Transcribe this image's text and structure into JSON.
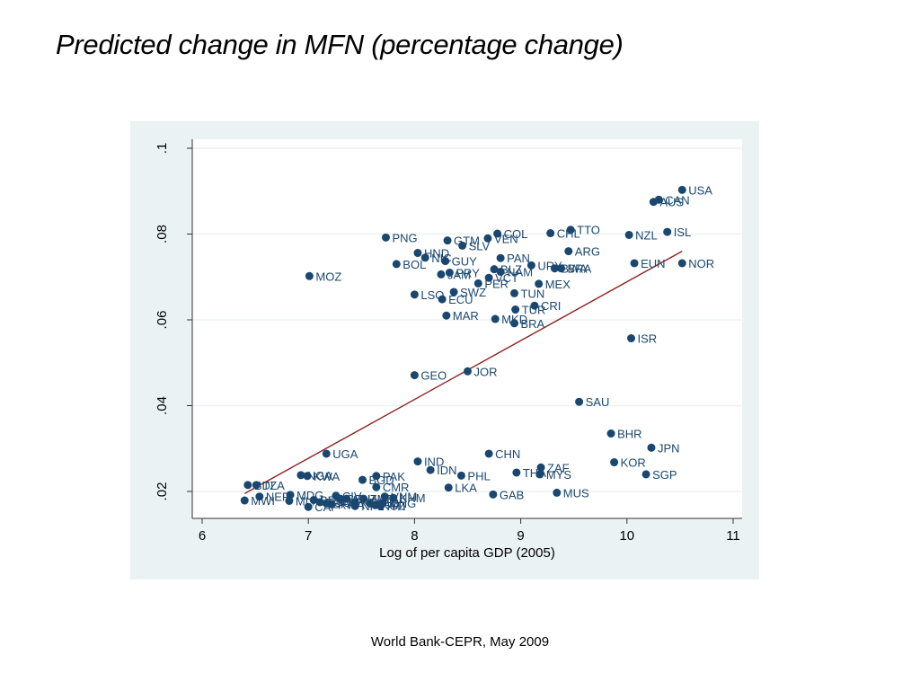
{
  "slide": {
    "title": "Predicted change in MFN (percentage change)",
    "footer": "World Bank-CEPR, May 2009"
  },
  "colors": {
    "marker": "#1a476f",
    "fit_line": "#8b2323",
    "plot_region_bg": "#eaf2f3",
    "plot_bg": "#ffffff",
    "grid": "#eaf2f3"
  },
  "chart_data": {
    "type": "scatter",
    "title": "",
    "xlabel": "Log of per capita GDP (2005)",
    "ylabel": "",
    "xlim": [
      5.95,
      11.05
    ],
    "ylim": [
      0.0165,
      0.1015
    ],
    "xticks": [
      6,
      7,
      8,
      9,
      10,
      11
    ],
    "xtick_labels": [
      "6",
      "7",
      "8",
      "9",
      "10",
      "11"
    ],
    "yticks": [
      0.02,
      0.04,
      0.06,
      0.08,
      0.1
    ],
    "ytick_labels": [
      ".02",
      ".04",
      ".06",
      ".08",
      ".1"
    ],
    "grid": true,
    "legend": "none",
    "fit_line": {
      "x": [
        6.4,
        10.52
      ],
      "y": [
        0.0195,
        0.076
      ]
    },
    "points": [
      {
        "label": "USA",
        "x": 10.52,
        "y": 0.0903
      },
      {
        "label": "CAN",
        "x": 10.3,
        "y": 0.088
      },
      {
        "label": "AUS",
        "x": 10.25,
        "y": 0.0875
      },
      {
        "label": "TTO",
        "x": 9.47,
        "y": 0.081
      },
      {
        "label": "CHL",
        "x": 9.28,
        "y": 0.0802
      },
      {
        "label": "NZL",
        "x": 10.02,
        "y": 0.0798
      },
      {
        "label": "ISL",
        "x": 10.38,
        "y": 0.0805
      },
      {
        "label": "ARG",
        "x": 9.45,
        "y": 0.076
      },
      {
        "label": "EUN",
        "x": 10.07,
        "y": 0.0732
      },
      {
        "label": "NOR",
        "x": 10.52,
        "y": 0.0732
      },
      {
        "label": "ISR",
        "x": 10.04,
        "y": 0.0557
      },
      {
        "label": "PNG",
        "x": 7.73,
        "y": 0.0792
      },
      {
        "label": "GTM",
        "x": 8.31,
        "y": 0.0785
      },
      {
        "label": "SLV",
        "x": 8.45,
        "y": 0.0773
      },
      {
        "label": "VEN",
        "x": 8.69,
        "y": 0.079
      },
      {
        "label": "COL",
        "x": 8.78,
        "y": 0.0801
      },
      {
        "label": "HND",
        "x": 8.03,
        "y": 0.0756
      },
      {
        "label": "NIC",
        "x": 8.1,
        "y": 0.0745
      },
      {
        "label": "GUY",
        "x": 8.29,
        "y": 0.0737
      },
      {
        "label": "BOL",
        "x": 7.83,
        "y": 0.073
      },
      {
        "label": "PAN",
        "x": 8.81,
        "y": 0.0744
      },
      {
        "label": "URY",
        "x": 9.1,
        "y": 0.0727
      },
      {
        "label": "BWA",
        "x": 9.32,
        "y": 0.072
      },
      {
        "label": "BRA2",
        "x": 9.38,
        "y": 0.072
      },
      {
        "label": "JAM",
        "x": 8.25,
        "y": 0.0706
      },
      {
        "label": "PRY",
        "x": 8.33,
        "y": 0.071
      },
      {
        "label": "BLZ",
        "x": 8.75,
        "y": 0.0718
      },
      {
        "label": "NAM",
        "x": 8.81,
        "y": 0.0712
      },
      {
        "label": "VCT",
        "x": 8.7,
        "y": 0.0698
      },
      {
        "label": "PER",
        "x": 8.6,
        "y": 0.0685
      },
      {
        "label": "MEX",
        "x": 9.17,
        "y": 0.0684
      },
      {
        "label": "MOZ",
        "x": 7.01,
        "y": 0.0702
      },
      {
        "label": "LSO",
        "x": 8.0,
        "y": 0.0659
      },
      {
        "label": "SWZ",
        "x": 8.37,
        "y": 0.0665
      },
      {
        "label": "ECU",
        "x": 8.26,
        "y": 0.0648
      },
      {
        "label": "TUN",
        "x": 8.94,
        "y": 0.0662
      },
      {
        "label": "CRI",
        "x": 9.13,
        "y": 0.0633
      },
      {
        "label": "TUR",
        "x": 8.95,
        "y": 0.0624
      },
      {
        "label": "MAR",
        "x": 8.3,
        "y": 0.061
      },
      {
        "label": "MKD",
        "x": 8.76,
        "y": 0.0602
      },
      {
        "label": "BRA",
        "x": 8.94,
        "y": 0.0592
      },
      {
        "label": "GEO",
        "x": 8.0,
        "y": 0.0471
      },
      {
        "label": "JOR",
        "x": 8.5,
        "y": 0.048
      },
      {
        "label": "SAU",
        "x": 9.55,
        "y": 0.0409
      },
      {
        "label": "BHR",
        "x": 9.85,
        "y": 0.0335
      },
      {
        "label": "JPN",
        "x": 10.23,
        "y": 0.0302
      },
      {
        "label": "KOR",
        "x": 9.88,
        "y": 0.0268
      },
      {
        "label": "SGP",
        "x": 10.18,
        "y": 0.024
      },
      {
        "label": "CHN",
        "x": 8.7,
        "y": 0.0288
      },
      {
        "label": "IND",
        "x": 8.03,
        "y": 0.027
      },
      {
        "label": "IDN",
        "x": 8.15,
        "y": 0.025
      },
      {
        "label": "PHL",
        "x": 8.44,
        "y": 0.0237
      },
      {
        "label": "LKA",
        "x": 8.32,
        "y": 0.0209
      },
      {
        "label": "GAB",
        "x": 8.74,
        "y": 0.0193
      },
      {
        "label": "THA",
        "x": 8.96,
        "y": 0.0244
      },
      {
        "label": "ZAF",
        "x": 9.19,
        "y": 0.0256
      },
      {
        "label": "MYS",
        "x": 9.18,
        "y": 0.024
      },
      {
        "label": "MUS",
        "x": 9.34,
        "y": 0.0197
      },
      {
        "label": "UGA",
        "x": 7.17,
        "y": 0.0288
      },
      {
        "label": "NGA",
        "x": 6.93,
        "y": 0.0238
      },
      {
        "label": "KWA",
        "x": 6.99,
        "y": 0.0236
      },
      {
        "label": "PAK",
        "x": 7.64,
        "y": 0.0236
      },
      {
        "label": "BGD",
        "x": 7.51,
        "y": 0.0227
      },
      {
        "label": "CMR",
        "x": 7.64,
        "y": 0.021
      },
      {
        "label": "BDI",
        "x": 6.43,
        "y": 0.0215
      },
      {
        "label": "TZA",
        "x": 6.51,
        "y": 0.0215
      },
      {
        "label": "NER",
        "x": 6.54,
        "y": 0.0188
      },
      {
        "label": "MDG",
        "x": 6.83,
        "y": 0.0192
      },
      {
        "label": "MWI",
        "x": 6.4,
        "y": 0.0179
      },
      {
        "label": "MLI",
        "x": 6.82,
        "y": 0.0178
      },
      {
        "label": "BEN",
        "x": 7.05,
        "y": 0.018
      },
      {
        "label": "CAF",
        "x": 7.0,
        "y": 0.0164
      },
      {
        "label": "CIV",
        "x": 7.26,
        "y": 0.019
      },
      {
        "label": "SEN",
        "x": 7.3,
        "y": 0.0183
      },
      {
        "label": "TGO",
        "x": 7.11,
        "y": 0.0175
      },
      {
        "label": "BFA",
        "x": 7.17,
        "y": 0.0172
      },
      {
        "label": "GHA",
        "x": 7.36,
        "y": 0.0183
      },
      {
        "label": "KEN",
        "x": 7.44,
        "y": 0.0175
      },
      {
        "label": "ZMB",
        "x": 7.52,
        "y": 0.0183
      },
      {
        "label": "RWA",
        "x": 7.22,
        "y": 0.017
      },
      {
        "label": "NPL",
        "x": 7.44,
        "y": 0.0166
      },
      {
        "label": "KHM",
        "x": 7.8,
        "y": 0.0185
      },
      {
        "label": "VNM",
        "x": 7.72,
        "y": 0.0188
      },
      {
        "label": "KGZ",
        "x": 7.63,
        "y": 0.0168
      },
      {
        "label": "MNG",
        "x": 7.7,
        "y": 0.0173
      },
      {
        "label": "LAO",
        "x": 7.58,
        "y": 0.0172
      },
      {
        "label": "HTI",
        "x": 7.68,
        "y": 0.0166
      }
    ]
  }
}
